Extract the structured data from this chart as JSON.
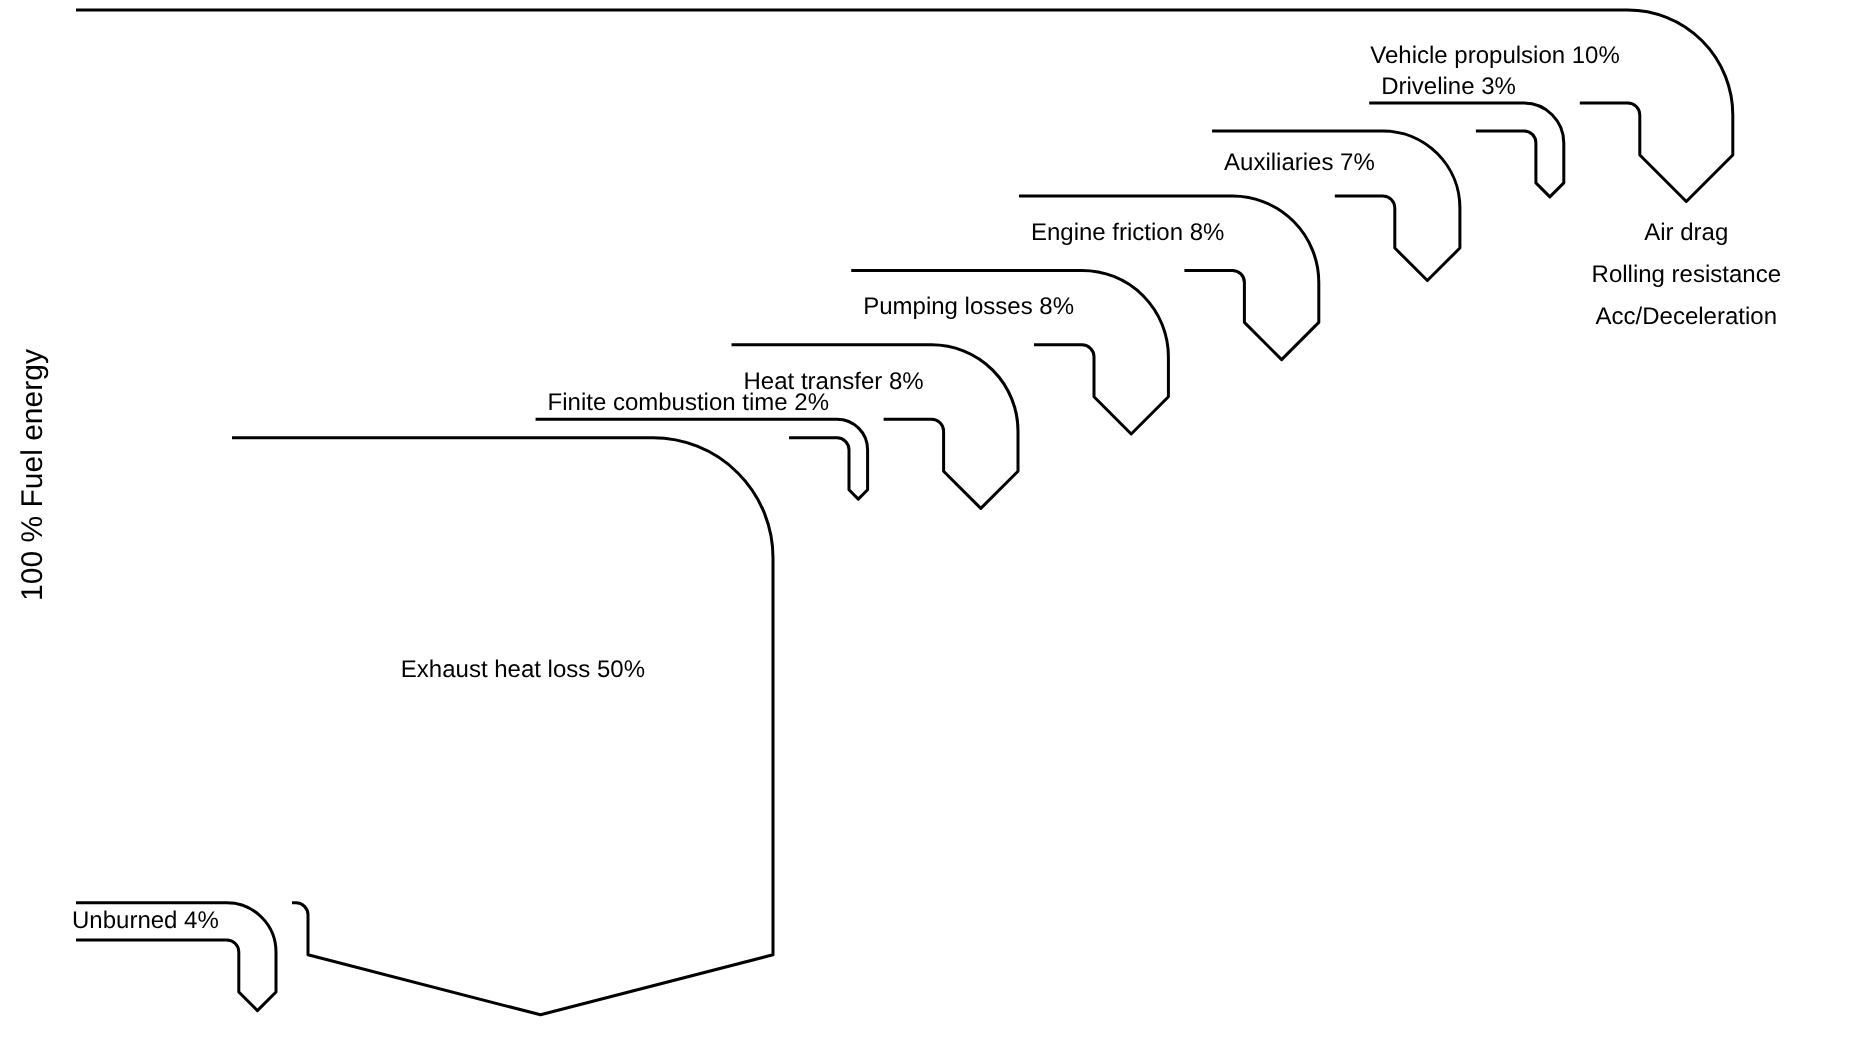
{
  "chart_data": {
    "type": "other",
    "ylabel": "100 % Fuel energy",
    "categories": [
      "Unburned",
      "Exhaust heat loss",
      "Finite combustion time",
      "Heat transfer",
      "Pumping losses",
      "Engine friction",
      "Auxiliaries",
      "Driveline",
      "Vehicle propulsion"
    ],
    "values": [
      4,
      50,
      2,
      8,
      8,
      8,
      7,
      3,
      10
    ],
    "value_labels": [
      "4%",
      "50%",
      "2%",
      "8%",
      "8%",
      "8%",
      "7%",
      "3%",
      "10%"
    ],
    "annotations": [
      "Air drag",
      "Rolling resistance",
      "Acc/Deceleration"
    ]
  }
}
